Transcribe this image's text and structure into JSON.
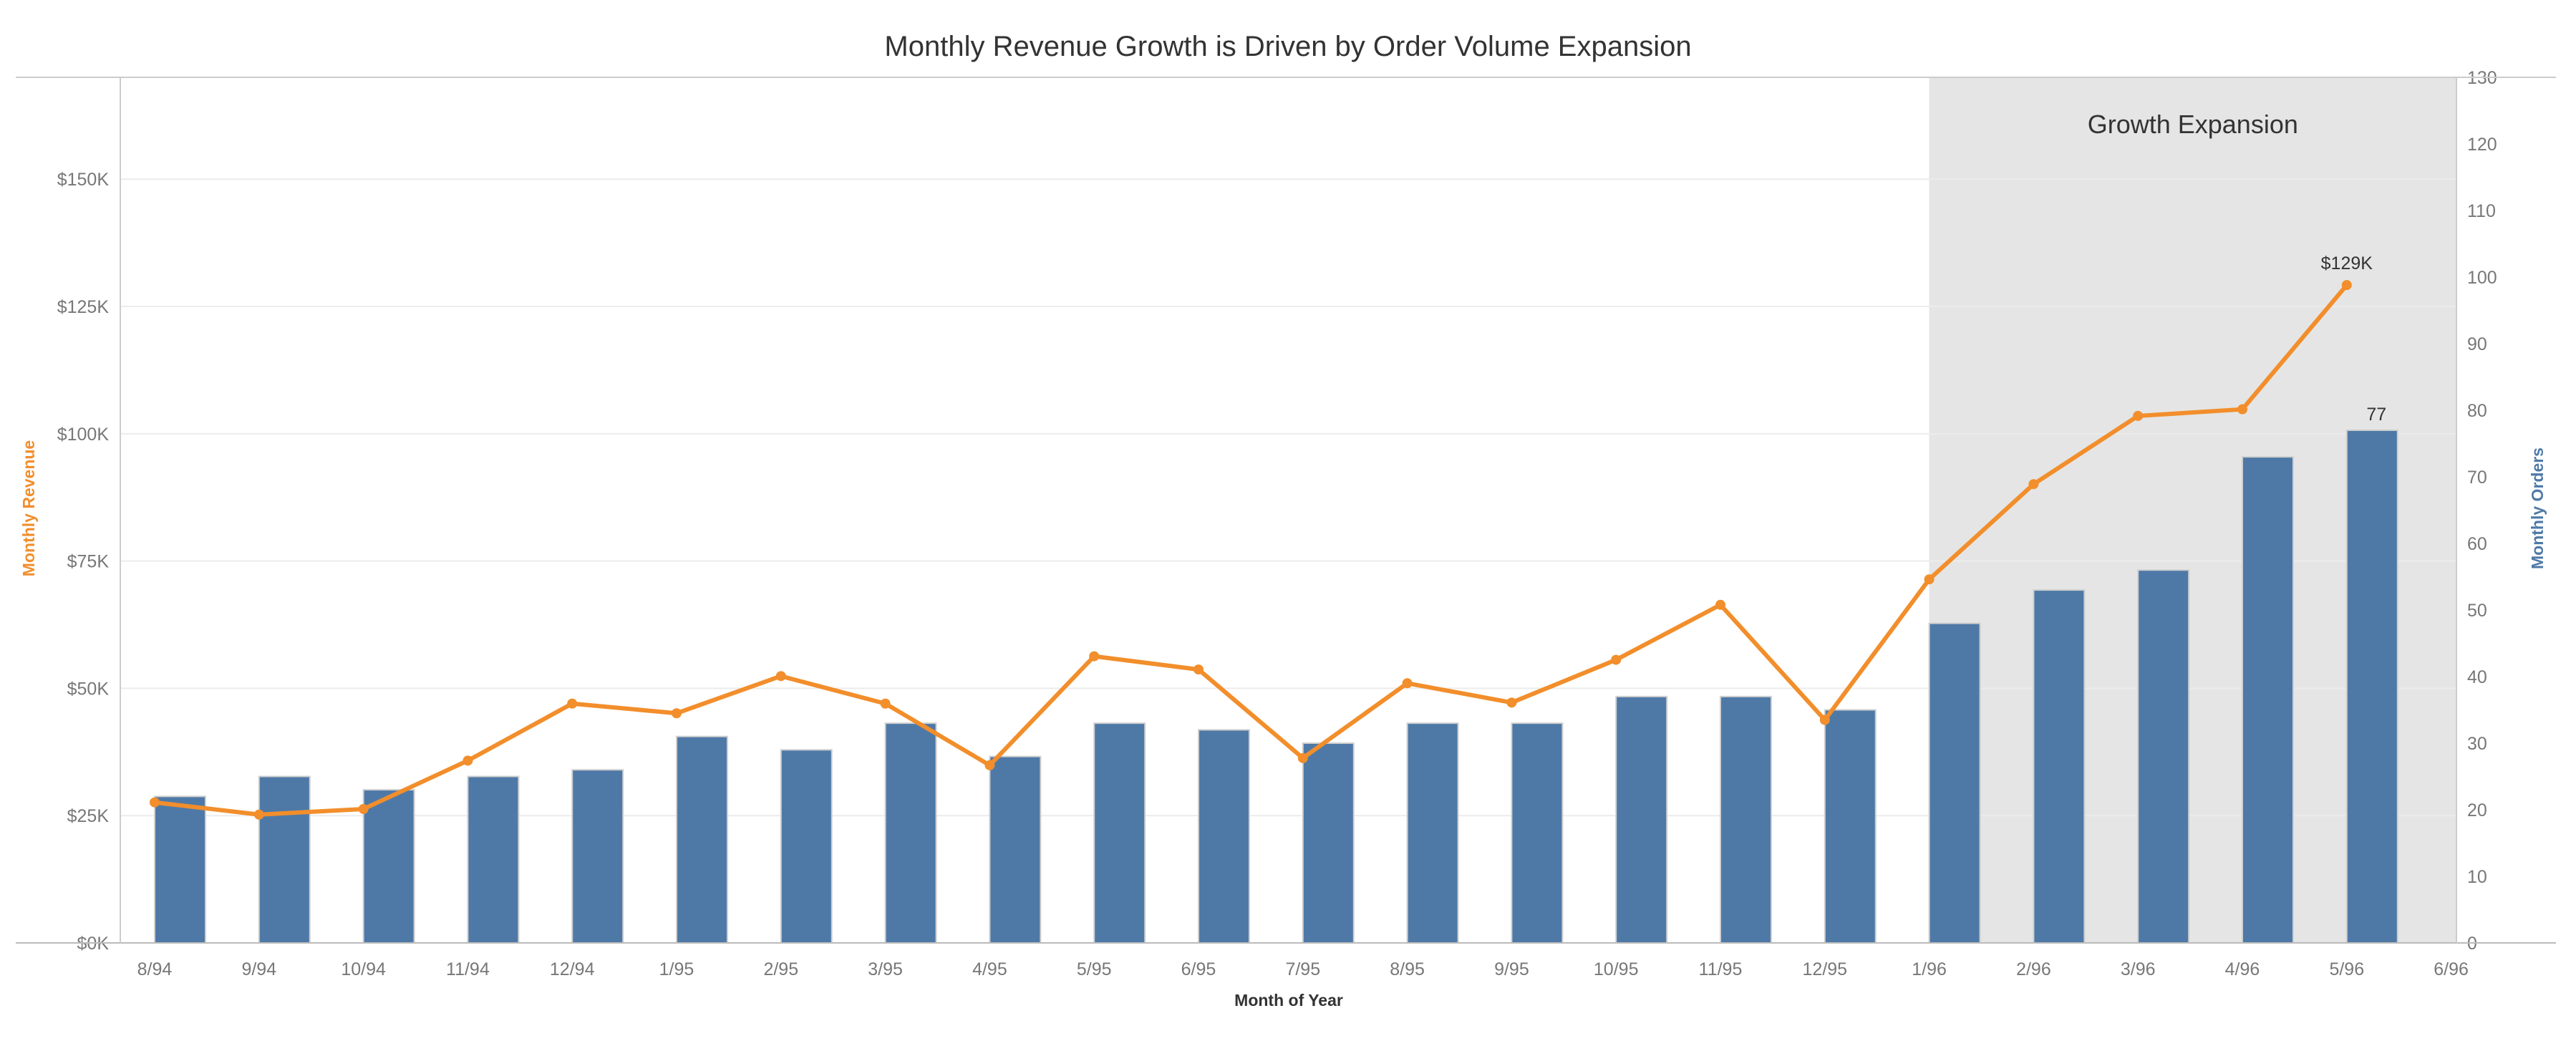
{
  "chart_data": {
    "type": "bar+line",
    "title": "Monthly Revenue Growth is Driven by Order Volume Expansion",
    "xlabel": "Month of Year",
    "ylabel_left": "Monthly Revenue",
    "ylabel_right": "Monthly Orders",
    "categories": [
      "8/94",
      "9/94",
      "10/94",
      "11/94",
      "12/94",
      "1/95",
      "2/95",
      "3/95",
      "4/95",
      "5/95",
      "6/95",
      "7/95",
      "8/95",
      "9/95",
      "10/95",
      "11/95",
      "12/95",
      "1/96",
      "2/96",
      "3/96",
      "4/96",
      "5/96",
      "6/96"
    ],
    "series": [
      {
        "name": "Monthly Orders",
        "type": "bar",
        "axis": "right",
        "color": "#4e79a7",
        "values": [
          22,
          25,
          23,
          25,
          26,
          31,
          29,
          33,
          28,
          33,
          32,
          30,
          33,
          33,
          37,
          37,
          35,
          48,
          53,
          56,
          73,
          77,
          null
        ]
      },
      {
        "name": "Monthly Revenue",
        "type": "line",
        "axis": "left",
        "color": "#f28e2b",
        "values": [
          27600,
          25200,
          26300,
          35800,
          47000,
          45100,
          52400,
          47000,
          34900,
          56300,
          53700,
          36300,
          51000,
          47200,
          55600,
          66400,
          43800,
          71400,
          90100,
          103500,
          104800,
          129200,
          null
        ]
      }
    ],
    "y_left": {
      "range": [
        0,
        170000
      ],
      "ticks": [
        0,
        25000,
        50000,
        75000,
        100000,
        125000,
        150000
      ],
      "tick_labels": [
        "$0K",
        "$25K",
        "$50K",
        "$75K",
        "$100K",
        "$125K",
        "$150K"
      ]
    },
    "y_right": {
      "range": [
        0,
        130
      ],
      "ticks": [
        0,
        10,
        20,
        30,
        40,
        50,
        60,
        70,
        80,
        90,
        100,
        110,
        120,
        130
      ],
      "tick_labels": [
        "0",
        "10",
        "20",
        "30",
        "40",
        "50",
        "60",
        "70",
        "80",
        "90",
        "100",
        "110",
        "120",
        "130"
      ]
    },
    "grid": true,
    "annotations": {
      "region_label": "Growth Expansion",
      "region_start": "1/96",
      "region_color": "#e5e5e5",
      "revenue_label": "$129K",
      "orders_label": "77"
    },
    "colors": {
      "left_axis_title": "#f28e2b",
      "right_axis_title": "#4e79a7"
    }
  }
}
